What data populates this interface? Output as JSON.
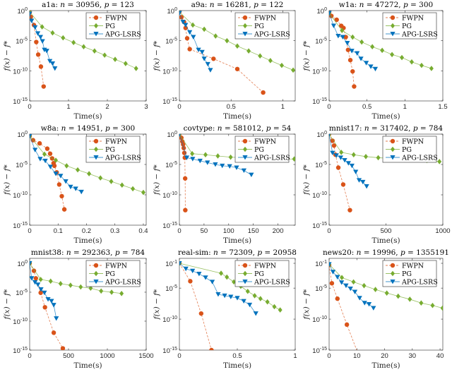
{
  "chart_data": [
    {
      "type": "line",
      "dataset": "a1a",
      "n": "30956",
      "p": "123",
      "xlim": [
        0,
        3
      ],
      "ylim": [
        1e-15,
        1
      ],
      "yscale": "log",
      "xticks": [
        0,
        1,
        2,
        3
      ],
      "yticks": [
        "0",
        "-5",
        "-10",
        "-15"
      ],
      "xlabel": "Time(s)",
      "ylabel": "f(x) − f*",
      "legend": "top-right",
      "series": [
        {
          "name": "FWPN",
          "x": [
            0,
            0.03,
            0.11,
            0.17,
            0.22,
            0.29,
            0.36
          ],
          "y": [
            0.5,
            0.09,
            0.004,
            6e-06,
            5e-08,
            5e-10,
            2.5e-13
          ]
        },
        {
          "name": "PG",
          "x": [
            0,
            0.32,
            0.59,
            0.86,
            1.13,
            1.39,
            1.67,
            1.93,
            2.2,
            2.47,
            2.74
          ],
          "y": [
            0.6,
            0.002,
            0.0002,
            3e-05,
            5e-06,
            1e-06,
            2e-07,
            4e-08,
            8e-09,
            1.6e-09,
            2.5e-10
          ]
        },
        {
          "name": "APG-LSRS",
          "x": [
            0,
            0.05,
            0.14,
            0.21,
            0.28,
            0.33,
            0.38,
            0.44,
            0.52,
            0.59,
            0.65
          ],
          "y": [
            0.3,
            0.02,
            0.0016,
            0.00016,
            4e-05,
            8e-06,
            3e-07,
            2e-07,
            4e-09,
            1.6e-09,
            2.5e-10
          ]
        }
      ]
    },
    {
      "type": "line",
      "dataset": "a9a",
      "n": "16281",
      "p": "122",
      "xlim": [
        0,
        1.12
      ],
      "ylim": [
        1e-15,
        1
      ],
      "yscale": "log",
      "xticks": [
        0,
        0.5,
        1
      ],
      "yticks": [
        "0",
        "-5",
        "-10",
        "-15"
      ],
      "xlabel": "Time(s)",
      "ylabel": "f(x) − f*",
      "legend": "top-right",
      "series": [
        {
          "name": "FWPN",
          "x": [
            0,
            0.02,
            0.045,
            0.06,
            0.075,
            0.1,
            0.33,
            0.56,
            0.81
          ],
          "y": [
            0.6,
            0.08,
            0.013,
            0.0013,
            2.5e-05,
            4e-07,
            1e-08,
            2e-10,
            2.5e-14
          ]
        },
        {
          "name": "PG",
          "x": [
            0,
            0.13,
            0.24,
            0.35,
            0.46,
            0.56,
            0.67,
            0.78,
            0.88,
            0.99,
            1.1
          ],
          "y": [
            0.6,
            0.004,
            0.0008,
            6e-05,
            1e-05,
            1.3e-06,
            2e-07,
            3e-08,
            5e-09,
            8e-10,
            1.3e-10
          ]
        },
        {
          "name": "APG-LSRS",
          "x": [
            0,
            0.035,
            0.06,
            0.1,
            0.135,
            0.185,
            0.22,
            0.24,
            0.275,
            0.3
          ],
          "y": [
            0.4,
            0.013,
            0.004,
            0.00025,
            4e-05,
            3e-07,
            1.3e-07,
            1e-08,
            1.3e-09,
            1.3e-10
          ]
        }
      ]
    },
    {
      "type": "line",
      "dataset": "w1a",
      "n": "47272",
      "p": "300",
      "xlim": [
        0,
        1.5
      ],
      "ylim": [
        1e-15,
        1
      ],
      "yscale": "log",
      "xticks": [
        0,
        0.5,
        1,
        1.5
      ],
      "yticks": [
        "0",
        "-5",
        "-10",
        "-15"
      ],
      "xlabel": "Time(s)",
      "ylabel": "f(x) − f*",
      "legend": "top-right",
      "series": [
        {
          "name": "FWPN",
          "x": [
            0,
            0.03,
            0.1,
            0.16,
            0.19,
            0.22,
            0.25,
            0.28,
            0.31,
            0.33
          ],
          "y": [
            0.5,
            0.13,
            0.03,
            0.003,
            0.0013,
            4e-05,
            3e-07,
            6e-09,
            8e-11,
            2.5e-13
          ]
        },
        {
          "name": "PG",
          "x": [
            0,
            0.17,
            0.31,
            0.43,
            0.57,
            0.7,
            0.83,
            0.96,
            1.09,
            1.22,
            1.35
          ],
          "y": [
            0.4,
            0.0005,
            4e-05,
            6e-06,
            1e-06,
            2.5e-07,
            5e-08,
            1.6e-08,
            3e-09,
            8e-10,
            2.5e-10
          ]
        },
        {
          "name": "APG-LSRS",
          "x": [
            0,
            0.06,
            0.12,
            0.18,
            0.24,
            0.3,
            0.37,
            0.42,
            0.49,
            0.55,
            0.61
          ],
          "y": [
            0.4,
            0.003,
            6e-05,
            4e-05,
            4e-06,
            2e-07,
            8e-08,
            1e-08,
            2e-09,
            5e-10,
            2e-10
          ]
        }
      ]
    },
    {
      "type": "line",
      "dataset": "w8a",
      "n": "14951",
      "p": "300",
      "xlim": [
        0,
        0.41
      ],
      "ylim": [
        1e-15,
        1
      ],
      "yscale": "log",
      "xticks": [
        0,
        0.1,
        0.2,
        0.3,
        0.4
      ],
      "yticks": [
        "0",
        "-5",
        "-10",
        "-15"
      ],
      "xlabel": "Time(s)",
      "ylabel": "f(x) − f*",
      "legend": "top-right",
      "series": [
        {
          "name": "FWPN",
          "x": [
            0,
            0.012,
            0.035,
            0.062,
            0.072,
            0.079,
            0.084,
            0.087,
            0.095,
            0.104,
            0.113,
            0.122
          ],
          "y": [
            0.5,
            0.1,
            0.03,
            0.004,
            0.0006,
            0.0001,
            1.6e-05,
            6e-06,
            5e-07,
            5e-09,
            6e-11,
            4e-13
          ]
        },
        {
          "name": "PG",
          "x": [
            0,
            0.052,
            0.092,
            0.13,
            0.169,
            0.209,
            0.249,
            0.287,
            0.325,
            0.363,
            0.4
          ],
          "y": [
            0.5,
            0.0005,
            5e-05,
            6e-06,
            1.3e-06,
            3e-07,
            6e-08,
            1.6e-08,
            4e-09,
            1e-09,
            2.5e-10
          ]
        },
        {
          "name": "APG-LSRS",
          "x": [
            0,
            0.019,
            0.037,
            0.055,
            0.073,
            0.092,
            0.109,
            0.127,
            0.144,
            0.162,
            0.182
          ],
          "y": [
            0.5,
            0.0025,
            8e-05,
            4e-05,
            4e-06,
            3e-07,
            1.3e-07,
            1.6e-08,
            2e-09,
            1e-09,
            3e-10
          ]
        }
      ]
    },
    {
      "type": "line",
      "dataset": "covtype",
      "n": "581012",
      "p": "54",
      "xlim": [
        0,
        235
      ],
      "ylim": [
        1e-15,
        1
      ],
      "yscale": "log",
      "xticks": [
        0,
        50,
        100,
        150,
        200
      ],
      "yticks": [
        "0",
        "-5",
        "-10",
        "-15"
      ],
      "xlabel": "Time(s)",
      "ylabel": "f(x) − f*",
      "legend": "top-right",
      "series": [
        {
          "name": "FWPN",
          "x": [
            0,
            4,
            6,
            7.6,
            8.8,
            10,
            11,
            11.7,
            12
          ],
          "y": [
            1,
            0.25,
            0.06,
            0.02,
            0.005,
            0.0008,
            0.00013,
            5e-08,
            3e-13
          ]
        },
        {
          "name": "PG",
          "x": [
            0,
            26,
            53,
            78,
            104,
            130,
            156,
            182,
            208,
            233
          ],
          "y": [
            1,
            0.0006,
            0.0004,
            0.00025,
            0.00016,
            0.00013,
            0.0001,
            9e-05,
            8e-05,
            8e-05
          ]
        },
        {
          "name": "APG-LSRS",
          "x": [
            0,
            15,
            27,
            42,
            57,
            73,
            87,
            102,
            116,
            131,
            146
          ],
          "y": [
            1,
            0.00013,
            8e-05,
            4e-05,
            2e-05,
            1e-05,
            6e-06,
            5e-06,
            3e-06,
            1e-06,
            2e-07
          ]
        }
      ]
    },
    {
      "type": "line",
      "dataset": "mnist17",
      "n": "317402",
      "p": "784",
      "xlim": [
        0,
        1000
      ],
      "ylim": [
        1e-15,
        1
      ],
      "yscale": "log",
      "xticks": [
        0,
        500,
        1000
      ],
      "yticks": [
        "0",
        "-5",
        "-10",
        "-15"
      ],
      "xlabel": "Time(s)",
      "ylabel": "f(x) − f*",
      "legend": "top-right",
      "series": [
        {
          "name": "FWPN",
          "x": [
            0,
            30,
            43,
            56,
            81,
            124,
            183
          ],
          "y": [
            1,
            0.08,
            0.013,
            0.0004,
            3e-06,
            5e-09,
            3e-13
          ]
        },
        {
          "name": "PG",
          "x": [
            0,
            107,
            216,
            323,
            432,
            538,
            645,
            752,
            860,
            970
          ],
          "y": [
            1,
            0.001,
            0.0004,
            0.0002,
            0.00013,
            0.0001,
            8e-05,
            6e-05,
            4.5e-05,
            3e-05
          ]
        },
        {
          "name": "APG-LSRS",
          "x": [
            0,
            30,
            64,
            102,
            137,
            170,
            201,
            234,
            264,
            297,
            330
          ],
          "y": [
            1,
            0.0008,
            0.0003,
            0.00013,
            5e-05,
            1.6e-05,
            6e-06,
            6e-07,
            2.5e-08,
            1.3e-08,
            2.5e-09
          ]
        }
      ]
    },
    {
      "type": "line",
      "dataset": "mnist38",
      "n": "292363",
      "p": "784",
      "xlim": [
        0,
        1500
      ],
      "ylim": [
        1e-15,
        7
      ],
      "yscale": "log",
      "xticks": [
        0,
        500,
        1000,
        1500
      ],
      "yticks": [
        "0",
        "-5",
        "-10",
        "-15"
      ],
      "xlabel": "Time(s)",
      "ylabel": "f(x) − f*",
      "legend": "top-right",
      "series": [
        {
          "name": "FWPN",
          "x": [
            0,
            55,
            80,
            142,
            197,
            310,
            427
          ],
          "y": [
            1,
            0.05,
            0.0025,
            8e-06,
            2.5e-08,
            1e-12,
            2e-15
          ]
        },
        {
          "name": "PG",
          "x": [
            0,
            142,
            270,
            398,
            526,
            657,
            785,
            920,
            1055,
            1183
          ],
          "y": [
            1,
            0.0016,
            0.0008,
            0.0003,
            0.00016,
            8e-05,
            5e-05,
            1.6e-05,
            1e-05,
            6e-06
          ]
        },
        {
          "name": "APG-LSRS",
          "x": [
            0,
            26,
            69,
            106,
            146,
            190,
            237,
            281,
            310,
            343
          ],
          "y": [
            1,
            0.0025,
            0.0005,
            0.0002,
            3e-05,
            8e-06,
            6e-07,
            3e-07,
            6e-08,
            3e-10
          ]
        }
      ]
    },
    {
      "type": "line",
      "dataset": "real-sim",
      "n": "72309",
      "p": "20958",
      "xlim": [
        0,
        1
      ],
      "ylim": [
        1e-15,
        0.63
      ],
      "yscale": "log",
      "xticks": [
        0,
        0.5,
        1
      ],
      "yticks": [
        "-1",
        "-5",
        "-10",
        "-15"
      ],
      "xlabel": "Time(s)",
      "ylabel": "f(x) − f*",
      "legend": "top-right",
      "series": [
        {
          "name": "FWPN",
          "x": [
            0,
            0.094,
            0.188,
            0.277
          ],
          "y": [
            0.1,
            0.00013,
            8e-10,
            1e-15
          ]
        },
        {
          "name": "PG",
          "x": [
            0,
            0.36,
            0.41,
            0.47,
            0.53,
            0.59,
            0.65,
            0.7,
            0.76,
            0.82,
            0.87
          ],
          "y": [
            0.1,
            0.0025,
            0.0006,
            0.0001,
            2e-05,
            3e-06,
            6e-07,
            2e-07,
            6e-08,
            1e-08,
            3e-09
          ]
        },
        {
          "name": "APG-LSRS",
          "x": [
            0,
            0.056,
            0.114,
            0.17,
            0.226,
            0.284,
            0.335,
            0.391,
            0.444,
            0.5,
            0.556,
            0.607,
            0.66
          ],
          "y": [
            0.1,
            0.013,
            0.006,
            0.002,
            0.0005,
            0.0001,
            1e-06,
            6e-07,
            4e-07,
            2.5e-07,
            8e-08,
            2e-08,
            8e-10
          ]
        }
      ]
    },
    {
      "type": "line",
      "dataset": "news20",
      "n": "19996",
      "p": "1355191",
      "xlim": [
        0,
        41
      ],
      "ylim": [
        1e-15,
        0.63
      ],
      "yscale": "log",
      "xticks": [
        0,
        10,
        20,
        30,
        40
      ],
      "yticks": [
        "-1",
        "-5",
        "-10",
        "-15"
      ],
      "xlabel": "Time(s)",
      "ylabel": "f(x) − f*",
      "legend": "top-right",
      "series": [
        {
          "name": "FWPN",
          "x": [
            0,
            1,
            3,
            6.4,
            11
          ],
          "y": [
            0.05,
            6e-05,
            2e-07,
            1.3e-11,
            6e-17
          ]
        },
        {
          "name": "PG",
          "x": [
            0,
            4.6,
            8.8,
            12.6,
            16.7,
            20.8,
            24.9,
            29.1,
            33.2,
            37.3,
            40.9
          ],
          "y": [
            0.07,
            0.0005,
            0.0001,
            2.5e-05,
            6e-06,
            1.6e-06,
            5e-07,
            1.6e-07,
            4e-08,
            1.6e-08,
            6e-09
          ]
        },
        {
          "name": "APG-LSRS",
          "x": [
            0,
            1.4,
            3,
            4.5,
            6.1,
            7.7,
            9.3,
            11,
            12.8,
            14.4,
            16
          ],
          "y": [
            0.07,
            0.004,
            0.0006,
            8e-05,
            2.5e-05,
            8e-06,
            2.5e-06,
            2.5e-07,
            4e-08,
            2.5e-08,
            6e-09
          ]
        }
      ]
    }
  ],
  "series_style": {
    "FWPN": {
      "color": "#D95319",
      "line": "dashed",
      "marker": "circle"
    },
    "PG": {
      "color": "#77AC30",
      "line": "solid",
      "marker": "diamond"
    },
    "APG-LSRS": {
      "color": "#0072BD",
      "line": "solid",
      "marker": "triangle-down"
    }
  }
}
